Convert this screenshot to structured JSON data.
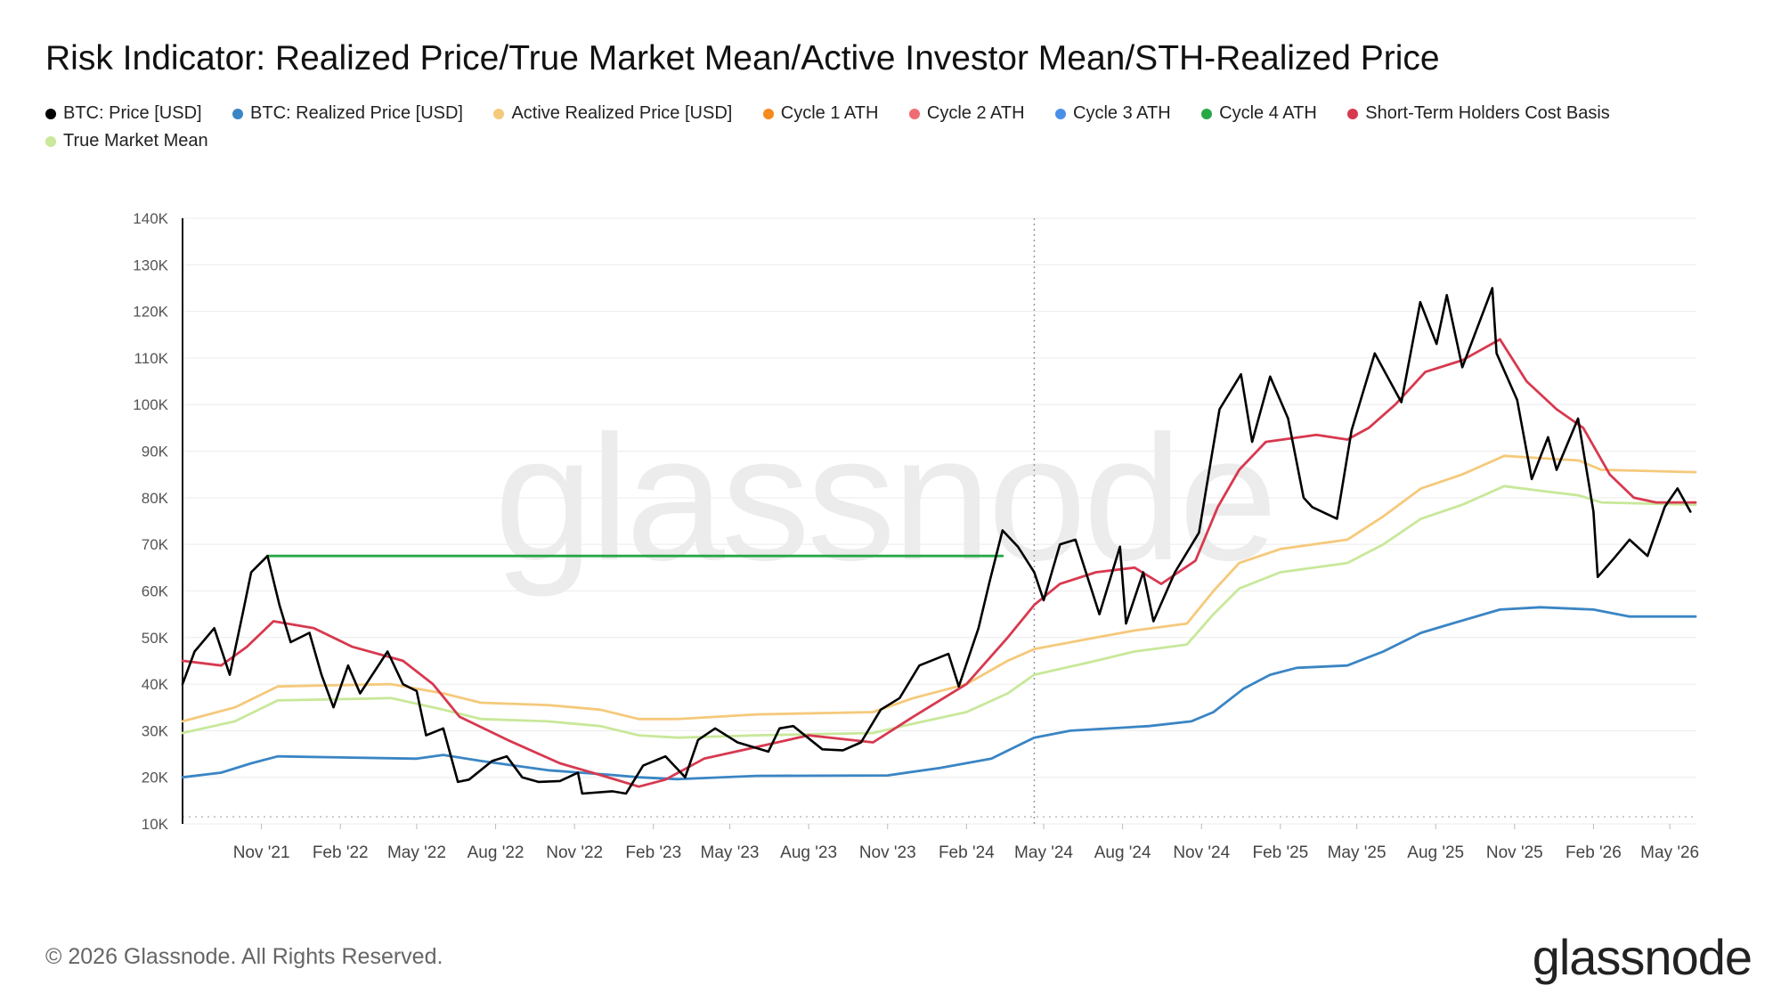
{
  "title": "Risk Indicator: Realized Price/True Market Mean/Active Investor Mean/STH-Realized Price",
  "legend": [
    {
      "label": "BTC: Price [USD]",
      "color": "#000000"
    },
    {
      "label": "BTC: Realized Price [USD]",
      "color": "#3a85c4"
    },
    {
      "label": "Active Realized Price [USD]",
      "color": "#f5c97b"
    },
    {
      "label": "Cycle 1 ATH",
      "color": "#f7891e"
    },
    {
      "label": "Cycle 2 ATH",
      "color": "#f06c72"
    },
    {
      "label": "Cycle 3 ATH",
      "color": "#4a8fe7"
    },
    {
      "label": "Cycle 4 ATH",
      "color": "#27a845"
    },
    {
      "label": "Short-Term Holders Cost Basis",
      "color": "#d7394f"
    },
    {
      "label": "True Market Mean",
      "color": "#c8e89a"
    }
  ],
  "footer": "© 2026 Glassnode. All Rights Reserved.",
  "brand": "glassnode",
  "watermark": "glassnode",
  "chart_data": {
    "type": "line",
    "title": "Risk Indicator: Realized Price/True Market Mean/Active Investor Mean/STH-Realized Price",
    "xlabel": "",
    "ylabel": "",
    "x_ticks": [
      "Nov '21",
      "Feb '22",
      "May '22",
      "Aug '22",
      "Nov '22",
      "Feb '23",
      "May '23",
      "Aug '23",
      "Nov '23",
      "Feb '24",
      "May '24",
      "Aug '24",
      "Nov '24",
      "Feb '25",
      "May '25",
      "Aug '25",
      "Nov '25",
      "Feb '26",
      "May '26"
    ],
    "y_ticks": [
      "10K",
      "20K",
      "30K",
      "40K",
      "50K",
      "60K",
      "70K",
      "80K",
      "90K",
      "100K",
      "110K",
      "120K",
      "130K",
      "140K"
    ],
    "ylim": [
      10000,
      140000
    ],
    "xlim": [
      "2021-08-01",
      "2026-06-01"
    ],
    "grid": true,
    "vertical_marker": "2024-04-20",
    "series": [
      {
        "name": "BTC: Price [USD]",
        "color": "#000000",
        "points": [
          [
            "2021-08-01",
            40000
          ],
          [
            "2021-08-15",
            47000
          ],
          [
            "2021-09-07",
            52000
          ],
          [
            "2021-09-25",
            42000
          ],
          [
            "2021-10-10",
            55000
          ],
          [
            "2021-10-20",
            64000
          ],
          [
            "2021-11-08",
            67500
          ],
          [
            "2021-11-22",
            57000
          ],
          [
            "2021-12-05",
            49000
          ],
          [
            "2021-12-27",
            51000
          ],
          [
            "2022-01-10",
            42000
          ],
          [
            "2022-01-24",
            35000
          ],
          [
            "2022-02-10",
            44000
          ],
          [
            "2022-02-24",
            38000
          ],
          [
            "2022-03-28",
            47000
          ],
          [
            "2022-04-15",
            40000
          ],
          [
            "2022-05-01",
            38500
          ],
          [
            "2022-05-12",
            29000
          ],
          [
            "2022-06-01",
            30500
          ],
          [
            "2022-06-18",
            19000
          ],
          [
            "2022-07-01",
            19500
          ],
          [
            "2022-07-28",
            23500
          ],
          [
            "2022-08-14",
            24500
          ],
          [
            "2022-09-01",
            20000
          ],
          [
            "2022-09-20",
            19000
          ],
          [
            "2022-10-15",
            19200
          ],
          [
            "2022-11-05",
            21000
          ],
          [
            "2022-11-10",
            16500
          ],
          [
            "2022-12-15",
            17000
          ],
          [
            "2022-12-31",
            16500
          ],
          [
            "2023-01-20",
            22500
          ],
          [
            "2023-02-15",
            24500
          ],
          [
            "2023-03-10",
            20000
          ],
          [
            "2023-03-25",
            28000
          ],
          [
            "2023-04-14",
            30500
          ],
          [
            "2023-05-10",
            27500
          ],
          [
            "2023-06-15",
            25500
          ],
          [
            "2023-06-28",
            30500
          ],
          [
            "2023-07-14",
            31000
          ],
          [
            "2023-08-17",
            26000
          ],
          [
            "2023-09-10",
            25800
          ],
          [
            "2023-10-01",
            27500
          ],
          [
            "2023-10-24",
            34500
          ],
          [
            "2023-11-15",
            37000
          ],
          [
            "2023-12-08",
            44000
          ],
          [
            "2024-01-11",
            46500
          ],
          [
            "2024-01-23",
            39500
          ],
          [
            "2024-02-15",
            52000
          ],
          [
            "2024-02-28",
            62000
          ],
          [
            "2024-03-14",
            73000
          ],
          [
            "2024-04-01",
            69500
          ],
          [
            "2024-04-20",
            64000
          ],
          [
            "2024-05-01",
            58000
          ],
          [
            "2024-05-20",
            70000
          ],
          [
            "2024-06-07",
            71000
          ],
          [
            "2024-07-05",
            55000
          ],
          [
            "2024-07-29",
            69500
          ],
          [
            "2024-08-05",
            53000
          ],
          [
            "2024-08-25",
            64000
          ],
          [
            "2024-09-06",
            53500
          ],
          [
            "2024-10-01",
            64000
          ],
          [
            "2024-10-29",
            72500
          ],
          [
            "2024-11-12",
            88000
          ],
          [
            "2024-11-22",
            99000
          ],
          [
            "2024-12-17",
            106500
          ],
          [
            "2024-12-30",
            92000
          ],
          [
            "2025-01-20",
            106000
          ],
          [
            "2025-02-10",
            97000
          ],
          [
            "2025-02-28",
            80000
          ],
          [
            "2025-03-10",
            78000
          ],
          [
            "2025-04-08",
            75500
          ],
          [
            "2025-04-25",
            94500
          ],
          [
            "2025-05-22",
            111000
          ],
          [
            "2025-06-22",
            100500
          ],
          [
            "2025-07-14",
            122000
          ],
          [
            "2025-08-02",
            113000
          ],
          [
            "2025-08-14",
            123500
          ],
          [
            "2025-09-01",
            108000
          ],
          [
            "2025-10-06",
            125000
          ],
          [
            "2025-10-11",
            111000
          ],
          [
            "2025-11-04",
            101000
          ],
          [
            "2025-11-21",
            84000
          ],
          [
            "2025-12-10",
            93000
          ],
          [
            "2025-12-20",
            86000
          ],
          [
            "2026-01-14",
            97000
          ],
          [
            "2026-02-01",
            77000
          ],
          [
            "2026-02-06",
            63000
          ],
          [
            "2026-02-25",
            67000
          ],
          [
            "2026-03-15",
            71000
          ],
          [
            "2026-04-05",
            67500
          ],
          [
            "2026-04-25",
            78000
          ],
          [
            "2026-05-10",
            82000
          ],
          [
            "2026-05-25",
            77000
          ]
        ]
      },
      {
        "name": "BTC: Realized Price [USD]",
        "color": "#3a85c4",
        "points": [
          [
            "2021-08-01",
            20000
          ],
          [
            "2021-09-15",
            21000
          ],
          [
            "2021-10-20",
            23000
          ],
          [
            "2021-11-20",
            24500
          ],
          [
            "2022-05-01",
            24000
          ],
          [
            "2022-06-01",
            24800
          ],
          [
            "2022-07-15",
            23500
          ],
          [
            "2022-10-01",
            21500
          ],
          [
            "2022-12-15",
            20500
          ],
          [
            "2023-01-15",
            20000
          ],
          [
            "2023-03-01",
            19600
          ],
          [
            "2023-06-01",
            20300
          ],
          [
            "2023-11-01",
            20400
          ],
          [
            "2024-01-01",
            22000
          ],
          [
            "2024-03-01",
            24000
          ],
          [
            "2024-04-20",
            28500
          ],
          [
            "2024-06-01",
            30000
          ],
          [
            "2024-09-01",
            31000
          ],
          [
            "2024-10-20",
            32000
          ],
          [
            "2024-11-15",
            34000
          ],
          [
            "2024-12-20",
            39000
          ],
          [
            "2025-01-20",
            42000
          ],
          [
            "2025-02-20",
            43500
          ],
          [
            "2025-04-20",
            44000
          ],
          [
            "2025-06-01",
            47000
          ],
          [
            "2025-07-15",
            51000
          ],
          [
            "2025-08-20",
            53000
          ],
          [
            "2025-10-15",
            56000
          ],
          [
            "2025-12-01",
            56500
          ],
          [
            "2026-02-01",
            56000
          ],
          [
            "2026-03-15",
            54500
          ],
          [
            "2026-05-31",
            54500
          ]
        ]
      },
      {
        "name": "Active Realized Price [USD]",
        "color": "#f5c97b",
        "points": [
          [
            "2021-08-01",
            32000
          ],
          [
            "2021-10-01",
            35000
          ],
          [
            "2021-11-20",
            39500
          ],
          [
            "2022-04-01",
            40000
          ],
          [
            "2022-06-01",
            38000
          ],
          [
            "2022-07-15",
            36000
          ],
          [
            "2022-10-01",
            35500
          ],
          [
            "2022-12-01",
            34500
          ],
          [
            "2023-01-15",
            32500
          ],
          [
            "2023-03-01",
            32500
          ],
          [
            "2023-06-01",
            33500
          ],
          [
            "2023-10-15",
            34000
          ],
          [
            "2023-12-01",
            37000
          ],
          [
            "2024-02-01",
            40000
          ],
          [
            "2024-03-20",
            45000
          ],
          [
            "2024-04-20",
            47500
          ],
          [
            "2024-07-01",
            50000
          ],
          [
            "2024-08-15",
            51500
          ],
          [
            "2024-10-15",
            53000
          ],
          [
            "2024-11-15",
            60000
          ],
          [
            "2024-12-15",
            66000
          ],
          [
            "2025-02-01",
            69000
          ],
          [
            "2025-04-20",
            71000
          ],
          [
            "2025-06-01",
            76000
          ],
          [
            "2025-07-15",
            82000
          ],
          [
            "2025-09-01",
            85000
          ],
          [
            "2025-10-20",
            89000
          ],
          [
            "2025-12-01",
            88500
          ],
          [
            "2026-01-15",
            88000
          ],
          [
            "2026-02-10",
            86000
          ],
          [
            "2026-05-31",
            85500
          ]
        ]
      },
      {
        "name": "Short-Term Holders Cost Basis",
        "color": "#d7394f",
        "points": [
          [
            "2021-08-01",
            45000
          ],
          [
            "2021-09-15",
            44000
          ],
          [
            "2021-10-15",
            48000
          ],
          [
            "2021-11-15",
            53500
          ],
          [
            "2022-01-01",
            52000
          ],
          [
            "2022-02-15",
            48000
          ],
          [
            "2022-04-15",
            45000
          ],
          [
            "2022-05-20",
            40000
          ],
          [
            "2022-06-20",
            33000
          ],
          [
            "2022-08-15",
            28000
          ],
          [
            "2022-10-15",
            23000
          ],
          [
            "2022-12-01",
            20500
          ],
          [
            "2023-01-15",
            18000
          ],
          [
            "2023-02-15",
            19500
          ],
          [
            "2023-04-01",
            24000
          ],
          [
            "2023-06-01",
            26500
          ],
          [
            "2023-08-01",
            29000
          ],
          [
            "2023-10-15",
            27500
          ],
          [
            "2023-12-01",
            33000
          ],
          [
            "2024-02-01",
            40000
          ],
          [
            "2024-03-20",
            50000
          ],
          [
            "2024-04-20",
            57000
          ],
          [
            "2024-05-20",
            61500
          ],
          [
            "2024-07-01",
            64000
          ],
          [
            "2024-08-15",
            65000
          ],
          [
            "2024-09-15",
            61500
          ],
          [
            "2024-10-25",
            66500
          ],
          [
            "2024-11-20",
            78000
          ],
          [
            "2024-12-15",
            86000
          ],
          [
            "2025-01-15",
            92000
          ],
          [
            "2025-03-15",
            93500
          ],
          [
            "2025-04-20",
            92500
          ],
          [
            "2025-05-15",
            95000
          ],
          [
            "2025-06-15",
            100000
          ],
          [
            "2025-07-20",
            107000
          ],
          [
            "2025-09-01",
            109500
          ],
          [
            "2025-10-15",
            114000
          ],
          [
            "2025-11-15",
            105000
          ],
          [
            "2025-12-20",
            99000
          ],
          [
            "2026-01-20",
            95000
          ],
          [
            "2026-02-20",
            85000
          ],
          [
            "2026-03-20",
            80000
          ],
          [
            "2026-04-15",
            79000
          ],
          [
            "2026-05-31",
            79000
          ]
        ]
      },
      {
        "name": "True Market Mean",
        "color": "#c8e89a",
        "points": [
          [
            "2021-08-01",
            29500
          ],
          [
            "2021-10-01",
            32000
          ],
          [
            "2021-11-20",
            36500
          ],
          [
            "2022-04-01",
            37000
          ],
          [
            "2022-06-01",
            34500
          ],
          [
            "2022-07-15",
            32500
          ],
          [
            "2022-10-01",
            32000
          ],
          [
            "2022-12-01",
            31000
          ],
          [
            "2023-01-15",
            29000
          ],
          [
            "2023-03-01",
            28500
          ],
          [
            "2023-06-01",
            29000
          ],
          [
            "2023-10-15",
            29500
          ],
          [
            "2023-12-01",
            31500
          ],
          [
            "2024-02-01",
            34000
          ],
          [
            "2024-03-20",
            38000
          ],
          [
            "2024-04-20",
            42000
          ],
          [
            "2024-07-01",
            45000
          ],
          [
            "2024-08-15",
            47000
          ],
          [
            "2024-10-15",
            48500
          ],
          [
            "2024-11-15",
            55000
          ],
          [
            "2024-12-15",
            60500
          ],
          [
            "2025-02-01",
            64000
          ],
          [
            "2025-04-20",
            66000
          ],
          [
            "2025-06-01",
            70000
          ],
          [
            "2025-07-15",
            75500
          ],
          [
            "2025-09-01",
            78500
          ],
          [
            "2025-10-20",
            82500
          ],
          [
            "2025-12-01",
            81500
          ],
          [
            "2026-01-15",
            80500
          ],
          [
            "2026-02-10",
            79000
          ],
          [
            "2026-05-31",
            78500
          ]
        ]
      },
      {
        "name": "Cycle 4 ATH",
        "color": "#27a845",
        "points": [
          [
            "2021-11-08",
            67500
          ],
          [
            "2024-03-14",
            67500
          ]
        ]
      }
    ]
  }
}
